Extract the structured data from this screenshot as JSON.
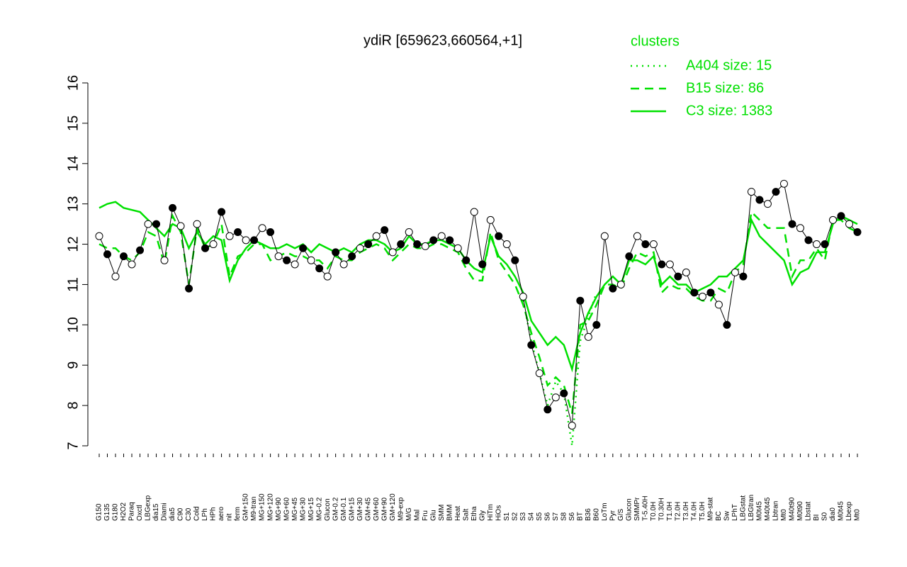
{
  "chart_data": {
    "type": "line",
    "title": "ydiR [659623,660564,+1]",
    "legend_title": "clusters",
    "legend": "top-right",
    "color": "#000000",
    "categories": [
      "G150",
      "G135",
      "G180",
      "H2O2",
      "Paraq",
      "Oxctl",
      "LBGexp",
      "dia15",
      "Diami",
      "dia5",
      "C90",
      "C30",
      "Cold",
      "LPh",
      "HPh",
      "aero",
      "nit",
      "ferm",
      "GM+150",
      "M9-tran",
      "MG+150",
      "MG+120",
      "MG+90",
      "MG+60",
      "MG+45",
      "MG+30",
      "MG+15",
      "MG-0.2",
      "Glucon",
      "GM-0.2",
      "GM-0.1",
      "GM+15",
      "GM+30",
      "GM+45",
      "GM+60",
      "GM+90",
      "GM+120",
      "M9-exp",
      "M/G",
      "Mal",
      "Fru",
      "Glu",
      "SMM",
      "BMM",
      "Heat",
      "Salt",
      "Etha",
      "Gly",
      "HiTm",
      "HiOs",
      "S1",
      "S2",
      "S3",
      "S4",
      "S5",
      "S6",
      "S7",
      "S8",
      "S6",
      "BT",
      "B36",
      "B60",
      "LoTm",
      "Pyr",
      "G/S",
      "Glucon",
      "SMMPr",
      "T-5.40H",
      "T0.0H",
      "T0.30H",
      "T1.0H",
      "T2.0H",
      "T3.0H",
      "T4.0H",
      "T5.0H",
      "M9-stat",
      "BC",
      "Sw",
      "LPhT",
      "LBGstat",
      "LBGtran",
      "M0t45",
      "M40t45",
      "Lbtran",
      "Mt0",
      "M40t90",
      "M0t90",
      "Lbstat",
      "BI",
      "S0",
      "dia0",
      "M0t45",
      "Lbexp",
      "Mt0"
    ],
    "values": [
      12.2,
      11.75,
      11.2,
      11.7,
      11.5,
      11.85,
      12.5,
      12.5,
      11.6,
      12.9,
      12.45,
      10.9,
      12.5,
      11.9,
      12.0,
      12.8,
      12.2,
      12.3,
      12.1,
      12.1,
      12.4,
      12.3,
      11.7,
      11.6,
      11.5,
      11.9,
      11.6,
      11.4,
      11.2,
      11.8,
      11.5,
      11.7,
      11.9,
      12.0,
      12.2,
      12.35,
      11.8,
      12.0,
      12.3,
      12.0,
      11.95,
      12.1,
      12.2,
      12.1,
      11.9,
      11.6,
      12.8,
      11.5,
      12.6,
      12.2,
      12.0,
      11.6,
      10.7,
      9.5,
      8.8,
      7.9,
      8.2,
      8.3,
      7.5,
      10.6,
      9.7,
      10.0,
      12.2,
      10.9,
      11.0,
      11.7,
      12.2,
      12.0,
      12.0,
      11.5,
      11.5,
      11.2,
      11.3,
      10.8,
      10.7,
      10.8,
      10.5,
      10.0,
      11.3,
      11.2,
      13.3,
      13.1,
      13.0,
      13.3,
      13.5,
      12.5,
      12.4,
      12.1,
      12.0,
      12.0,
      12.6,
      12.7,
      12.5,
      12.3
    ],
    "series": [
      {
        "name": "A404 size: 15",
        "color": "#00e000",
        "style": "dotted",
        "values": [
          null,
          null,
          null,
          null,
          null,
          null,
          null,
          null,
          null,
          null,
          null,
          null,
          null,
          null,
          null,
          null,
          null,
          null,
          null,
          null,
          null,
          null,
          null,
          null,
          null,
          null,
          null,
          null,
          null,
          null,
          null,
          null,
          null,
          null,
          null,
          null,
          null,
          null,
          null,
          null,
          null,
          null,
          null,
          null,
          null,
          null,
          null,
          null,
          null,
          null,
          null,
          null,
          10.6,
          9.6,
          8.8,
          8.0,
          8.6,
          8.3,
          7.0,
          9.6,
          10.2,
          10.8,
          null,
          null,
          null,
          null,
          null,
          null,
          null,
          null,
          null,
          null,
          null,
          null,
          null,
          null,
          null,
          null,
          null,
          null,
          null,
          null,
          null,
          null,
          null,
          null,
          null,
          null,
          null,
          null,
          null,
          null,
          null,
          null
        ]
      },
      {
        "name": "B15 size: 86",
        "color": "#00e000",
        "style": "dashed",
        "values": [
          12.0,
          11.9,
          11.9,
          11.7,
          11.6,
          11.8,
          12.3,
          12.2,
          11.5,
          12.7,
          12.3,
          11.0,
          12.4,
          11.9,
          12.0,
          12.5,
          11.2,
          11.7,
          11.8,
          12.0,
          12.0,
          11.6,
          11.7,
          11.8,
          11.7,
          11.7,
          11.6,
          11.6,
          11.4,
          11.7,
          11.6,
          11.6,
          11.8,
          11.9,
          12.0,
          11.9,
          11.6,
          11.8,
          12.0,
          11.9,
          11.9,
          12.0,
          12.0,
          11.9,
          11.8,
          11.4,
          11.1,
          11.1,
          12.3,
          11.6,
          11.3,
          11.0,
          10.5,
          9.8,
          9.2,
          8.5,
          8.7,
          8.5,
          7.8,
          10.0,
          10.1,
          10.5,
          11.0,
          11.0,
          10.9,
          11.4,
          11.8,
          11.7,
          11.8,
          10.8,
          11.0,
          10.9,
          10.9,
          10.7,
          10.6,
          10.6,
          10.9,
          10.8,
          11.3,
          11.5,
          12.8,
          12.6,
          12.4,
          12.4,
          12.4,
          11.2,
          11.6,
          11.6,
          11.9,
          11.6,
          12.6,
          12.6,
          12.4,
          12.3
        ]
      },
      {
        "name": "C3 size: 1383",
        "color": "#00e000",
        "style": "solid",
        "values": [
          12.9,
          13.0,
          13.05,
          12.9,
          12.85,
          12.8,
          12.6,
          12.4,
          12.2,
          12.5,
          12.4,
          11.9,
          12.3,
          12.0,
          12.2,
          12.1,
          11.1,
          11.6,
          11.9,
          12.1,
          12.0,
          11.9,
          11.9,
          12.0,
          11.9,
          12.0,
          11.8,
          12.0,
          11.9,
          11.8,
          11.9,
          11.8,
          12.0,
          12.1,
          12.1,
          12.0,
          11.8,
          11.9,
          12.2,
          12.0,
          12.0,
          12.1,
          12.1,
          12.0,
          11.9,
          11.6,
          11.4,
          11.3,
          12.2,
          11.7,
          11.5,
          11.2,
          10.8,
          10.1,
          9.8,
          9.5,
          9.7,
          9.5,
          8.9,
          9.8,
          10.3,
          10.7,
          11.0,
          11.2,
          11.0,
          11.6,
          11.6,
          11.5,
          11.7,
          11.0,
          11.2,
          11.0,
          11.0,
          10.8,
          10.9,
          11.0,
          11.2,
          11.2,
          11.4,
          11.6,
          12.6,
          12.2,
          12.0,
          11.8,
          11.6,
          11.0,
          11.3,
          11.4,
          11.8,
          11.8,
          12.5,
          12.7,
          12.6,
          12.5
        ]
      }
    ],
    "ylim": [
      7,
      16
    ],
    "yticks": [
      7,
      8,
      9,
      10,
      11,
      12,
      13,
      14,
      15,
      16
    ]
  }
}
